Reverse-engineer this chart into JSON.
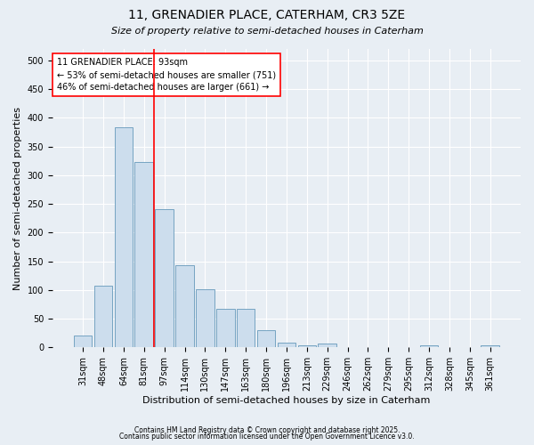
{
  "title1": "11, GRENADIER PLACE, CATERHAM, CR3 5ZE",
  "title2": "Size of property relative to semi-detached houses in Caterham",
  "xlabel": "Distribution of semi-detached houses by size in Caterham",
  "ylabel": "Number of semi-detached properties",
  "categories": [
    "31sqm",
    "48sqm",
    "64sqm",
    "81sqm",
    "97sqm",
    "114sqm",
    "130sqm",
    "147sqm",
    "163sqm",
    "180sqm",
    "196sqm",
    "213sqm",
    "229sqm",
    "246sqm",
    "262sqm",
    "279sqm",
    "295sqm",
    "312sqm",
    "328sqm",
    "345sqm",
    "361sqm"
  ],
  "values": [
    20,
    107,
    383,
    323,
    241,
    143,
    102,
    67,
    67,
    30,
    9,
    4,
    6,
    0,
    0,
    0,
    0,
    4,
    0,
    0,
    4
  ],
  "bar_color": "#ccdded",
  "bar_edge_color": "#6699bb",
  "annotation_text": "11 GRENADIER PLACE: 93sqm\n← 53% of semi-detached houses are smaller (751)\n46% of semi-detached houses are larger (661) →",
  "footer1": "Contains HM Land Registry data © Crown copyright and database right 2025.",
  "footer2": "Contains public sector information licensed under the Open Government Licence v3.0.",
  "ylim": [
    0,
    520
  ],
  "bg_color": "#e8eef4",
  "yticks": [
    0,
    50,
    100,
    150,
    200,
    250,
    300,
    350,
    400,
    450,
    500
  ],
  "red_line_index": 4.0,
  "title1_fontsize": 10,
  "title2_fontsize": 8,
  "ylabel_fontsize": 8,
  "xlabel_fontsize": 8,
  "tick_fontsize": 7,
  "annot_fontsize": 7,
  "footer_fontsize": 5.5
}
